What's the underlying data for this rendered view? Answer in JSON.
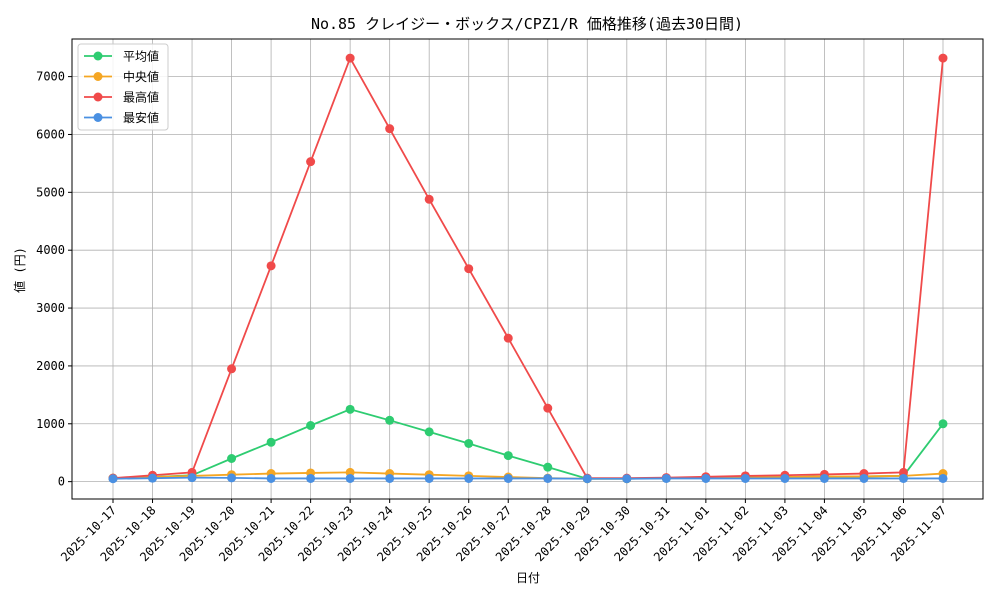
{
  "chart_data": {
    "type": "line",
    "title": "No.85 クレイジー・ボックス/CPZ1/R 価格推移(過去30日間)",
    "xlabel": "日付",
    "ylabel": "値 (円)",
    "ylim": [
      -300,
      7650
    ],
    "yticks": [
      0,
      1000,
      2000,
      3000,
      4000,
      5000,
      6000,
      7000
    ],
    "grid": true,
    "legend_position": "upper-left",
    "categories": [
      "2025-10-17",
      "2025-10-18",
      "2025-10-19",
      "2025-10-20",
      "2025-10-21",
      "2025-10-22",
      "2025-10-23",
      "2025-10-24",
      "2025-10-25",
      "2025-10-26",
      "2025-10-27",
      "2025-10-28",
      "2025-10-29",
      "2025-10-30",
      "2025-10-31",
      "2025-11-01",
      "2025-11-02",
      "2025-11-03",
      "2025-11-04",
      "2025-11-05",
      "2025-11-06",
      "2025-11-07"
    ],
    "series": [
      {
        "name": "平均値",
        "color": "#2ecc71",
        "values": [
          60,
          80,
          110,
          400,
          680,
          970,
          1250,
          1060,
          860,
          660,
          450,
          250,
          50,
          50,
          60,
          70,
          80,
          80,
          90,
          90,
          100,
          1000
        ]
      },
      {
        "name": "中央値",
        "color": "#f5a623",
        "values": [
          60,
          80,
          100,
          120,
          140,
          150,
          160,
          140,
          120,
          100,
          80,
          60,
          50,
          50,
          60,
          70,
          70,
          80,
          90,
          90,
          100,
          140
        ]
      },
      {
        "name": "最高値",
        "color": "#f04a4a",
        "values": [
          60,
          110,
          160,
          1950,
          3730,
          5530,
          7320,
          6100,
          4880,
          3680,
          2480,
          1270,
          60,
          60,
          70,
          85,
          100,
          110,
          125,
          140,
          160,
          7320
        ]
      },
      {
        "name": "最安値",
        "color": "#4a90e2",
        "values": [
          50,
          60,
          70,
          65,
          55,
          55,
          55,
          55,
          55,
          55,
          55,
          55,
          50,
          50,
          55,
          55,
          55,
          55,
          55,
          55,
          55,
          55
        ]
      }
    ]
  }
}
